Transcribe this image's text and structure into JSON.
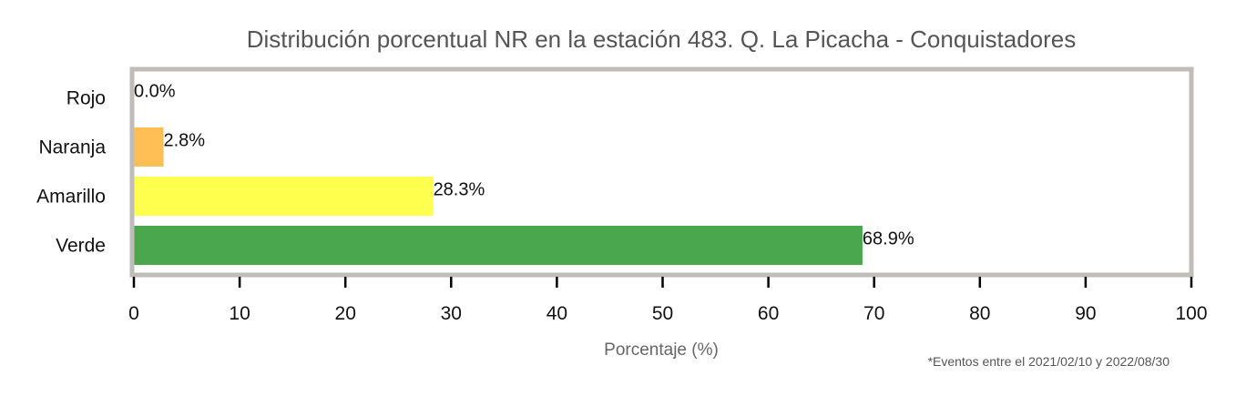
{
  "chart_data": {
    "type": "bar",
    "orientation": "horizontal",
    "title": "Distribución porcentual NR en la estación 483. Q. La Picacha - Conquistadores",
    "categories": [
      "Rojo",
      "Naranja",
      "Amarillo",
      "Verde"
    ],
    "values": [
      0.0,
      2.8,
      28.3,
      68.9
    ],
    "value_labels": [
      "0.0%",
      "2.8%",
      "28.3%",
      "68.9%"
    ],
    "colors": [
      "#e53935",
      "#ffbf55",
      "#ffff4d",
      "#4ba74e"
    ],
    "xlabel": "Porcentaje (%)",
    "ylabel": "",
    "xlim": [
      0,
      100
    ],
    "xticks": [
      "0",
      "10",
      "20",
      "30",
      "40",
      "50",
      "60",
      "70",
      "80",
      "90",
      "100"
    ],
    "grid": false,
    "frame_color": "#c0bdb8",
    "note": "*Eventos entre el 2021/02/10 y 2022/08/30"
  }
}
